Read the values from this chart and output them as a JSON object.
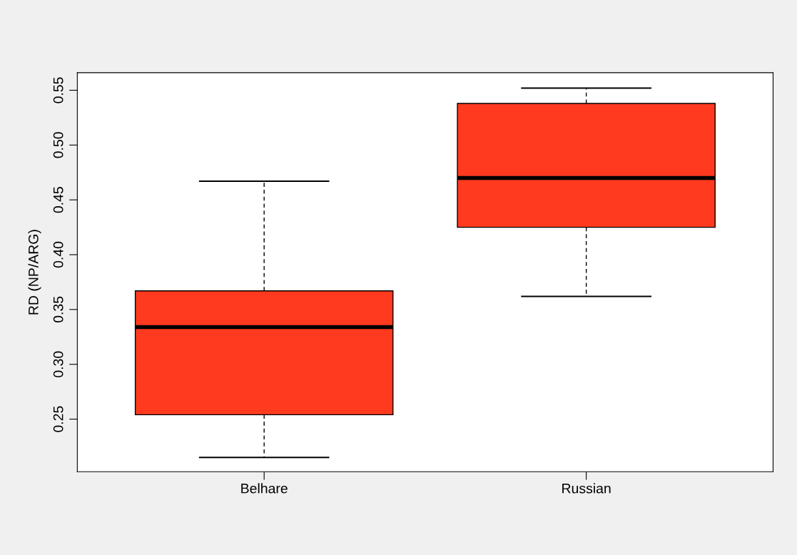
{
  "chart_data": {
    "type": "box",
    "ylabel": "RD (NP/ARG)",
    "categories": [
      "Belhare",
      "Russian"
    ],
    "color": "#ff3a1f",
    "boxes": [
      {
        "low": 0.215,
        "q1": 0.254,
        "median": 0.334,
        "q3": 0.367,
        "high": 0.467
      },
      {
        "low": 0.362,
        "q1": 0.425,
        "median": 0.47,
        "q3": 0.538,
        "high": 0.552
      }
    ],
    "ylim": [
      0.202,
      0.566
    ],
    "yticks": [
      {
        "value": 0.25,
        "label": "0.25"
      },
      {
        "value": 0.3,
        "label": "0.30"
      },
      {
        "value": 0.35,
        "label": "0.35"
      },
      {
        "value": 0.4,
        "label": "0.40"
      },
      {
        "value": 0.45,
        "label": "0.45"
      },
      {
        "value": 0.5,
        "label": "0.50"
      },
      {
        "value": 0.55,
        "label": "0.55"
      }
    ],
    "grid": false
  }
}
